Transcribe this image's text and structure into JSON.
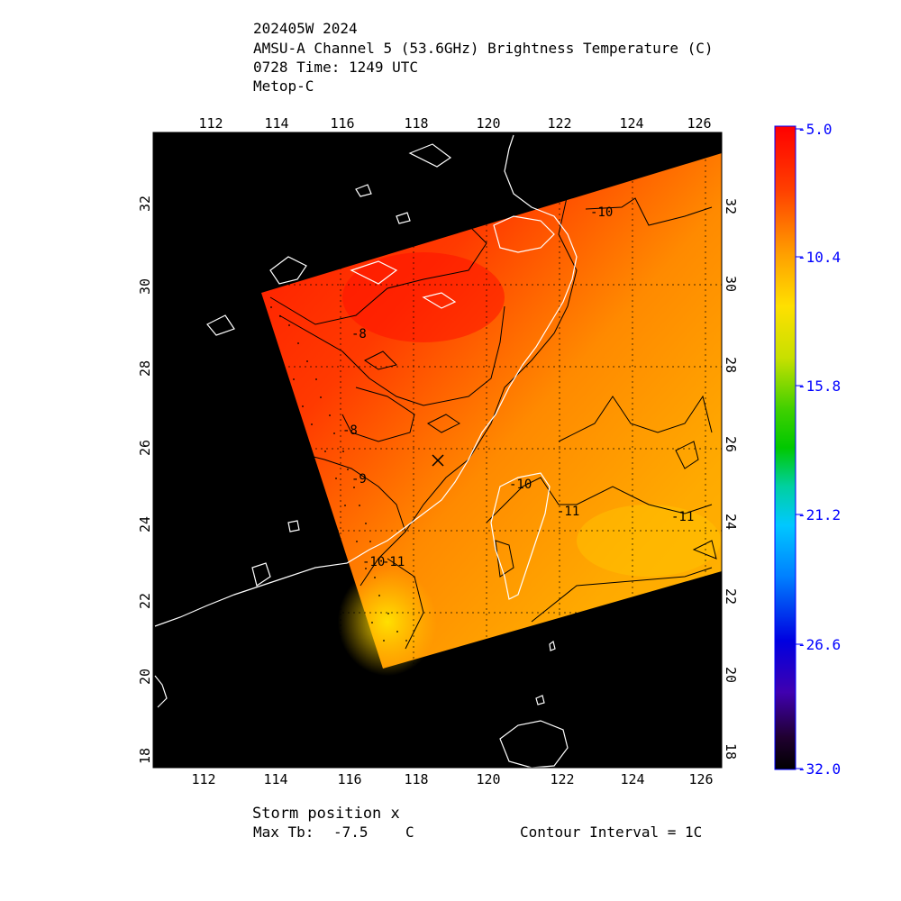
{
  "header": {
    "storm_id": "202405W 2024",
    "product": "AMSU-A Channel 5 (53.6GHz) Brightness Temperature (C)",
    "time": "0728 Time: 1249 UTC",
    "satellite": "Metop-C"
  },
  "map": {
    "lon_range": [
      110.5,
      126.8
    ],
    "lat_range": [
      17.6,
      33.6
    ],
    "lon_ticks": [
      "112",
      "114",
      "116",
      "118",
      "120",
      "122",
      "124",
      "126"
    ],
    "lat_ticks": [
      "18",
      "20",
      "22",
      "24",
      "26",
      "28",
      "30",
      "32"
    ],
    "storm_position": {
      "lon": 118.5,
      "lat": 25.7
    },
    "contour_labels": [
      "-10",
      "-8",
      "-8",
      "-9",
      "-10",
      "-11",
      "-10",
      "-11",
      "-11"
    ]
  },
  "colorbar": {
    "labels": [
      "-5.0",
      "-10.4",
      "-15.8",
      "-21.2",
      "-26.6",
      "-32.0"
    ],
    "label_color": "#0000ff"
  },
  "footer": {
    "storm_position_label": "Storm position x",
    "max_tb_label": "Max Tb:",
    "max_tb_value": "-7.5",
    "max_tb_unit": "C",
    "contour_interval": "Contour Interval = 1C"
  }
}
